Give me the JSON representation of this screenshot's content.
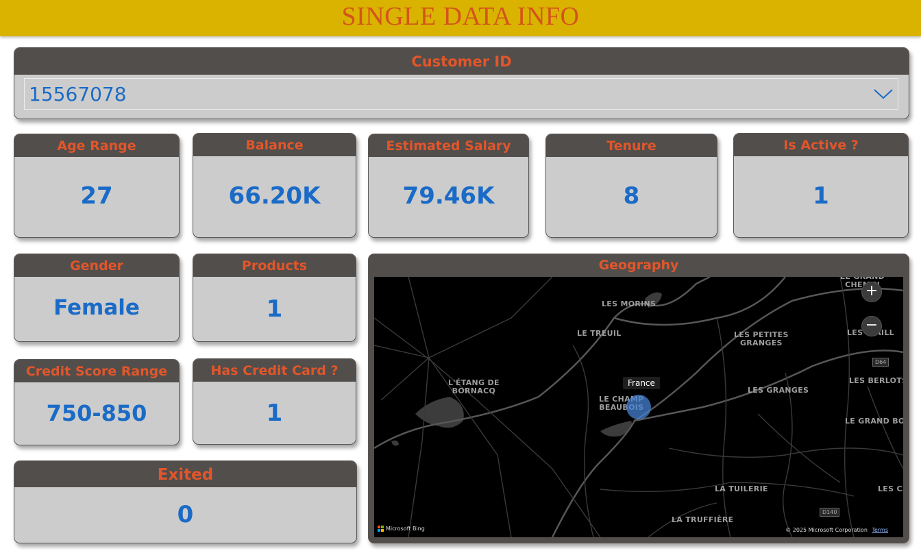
{
  "banner": {
    "title": "SINGLE DATA INFO"
  },
  "slicer": {
    "label": "Customer ID",
    "value": "15567078",
    "icon": "chevron-down-icon"
  },
  "cards": {
    "age_range": {
      "label": "Age Range",
      "value": "27"
    },
    "balance": {
      "label": "Balance",
      "value": "66.20K"
    },
    "estimated_salary": {
      "label": "Estimated Salary",
      "value": "79.46K"
    },
    "tenure": {
      "label": "Tenure",
      "value": "8"
    },
    "is_active": {
      "label": "Is Active ?",
      "value": "1"
    },
    "gender": {
      "label": "Gender",
      "value": "Female"
    },
    "products": {
      "label": "Products",
      "value": "1"
    },
    "credit_score_range": {
      "label": "Credit Score Range",
      "value": "750-850"
    },
    "has_credit_card": {
      "label": "Has Credit Card ?",
      "value": "1"
    },
    "exited": {
      "label": "Exited",
      "value": "0"
    }
  },
  "map": {
    "label": "Geography",
    "tooltip": "France",
    "places": [
      {
        "name": "LES MORINS"
      },
      {
        "name": "LE TREUIL"
      },
      {
        "name": "LES PETITES\nGRANGES"
      },
      {
        "name": "L'ÉTANG DE\nBORNACQ"
      },
      {
        "name": "LE CHAMP\nBEAUBOIS"
      },
      {
        "name": "LES GRANGES"
      },
      {
        "name": "LES BERLOTS"
      },
      {
        "name": "LE GRAND BOR"
      },
      {
        "name": "LA TUILERIE"
      },
      {
        "name": "LES CA"
      },
      {
        "name": "LA TRUFFIÈRE"
      },
      {
        "name": "LES  NAILL"
      },
      {
        "name": "LE GRAND\nCHEMIN"
      }
    ],
    "road_badges": [
      "D64",
      "D140"
    ],
    "zoom_in": "+",
    "zoom_out": "−",
    "bing": "Microsoft Bing",
    "copyright": "© 2025 Microsoft Corporation",
    "terms": "Terms",
    "colors": {
      "water": "#3a3a3a",
      "road": "#5a5a5a",
      "bubble": "#4682d2"
    }
  },
  "colors": {
    "banner_bg": "#d9b300",
    "title": "#d4541c",
    "card_head_bg": "#514e4c",
    "card_label": "#e2562a",
    "card_body": "#cccccc",
    "value": "#1a6bc7"
  }
}
